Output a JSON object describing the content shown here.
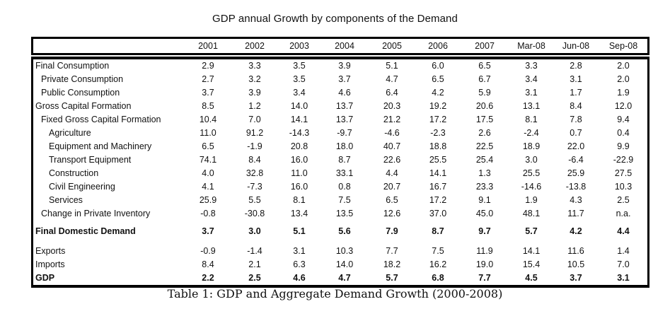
{
  "title": "GDP annual Growth by components of the Demand",
  "caption": "Table 1: GDP and Aggregate Demand Growth (2000-2008)",
  "columns": [
    "2001",
    "2002",
    "2003",
    "2004",
    "2005",
    "2006",
    "2007",
    "Mar-08",
    "Jun-08",
    "Sep-08"
  ],
  "rows": [
    {
      "label": "Final Consumption",
      "indent": 0,
      "bold": false,
      "values": [
        "2.9",
        "3.3",
        "3.5",
        "3.9",
        "5.1",
        "6.0",
        "6.5",
        "3.3",
        "2.8",
        "2.0"
      ]
    },
    {
      "label": "Private Consumption",
      "indent": 1,
      "bold": false,
      "values": [
        "2.7",
        "3.2",
        "3.5",
        "3.7",
        "4.7",
        "6.5",
        "6.7",
        "3.4",
        "3.1",
        "2.0"
      ]
    },
    {
      "label": "Public Consumption",
      "indent": 1,
      "bold": false,
      "values": [
        "3.7",
        "3.9",
        "3.4",
        "4.6",
        "6.4",
        "4.2",
        "5.9",
        "3.1",
        "1.7",
        "1.9"
      ]
    },
    {
      "label": "Gross Capital Formation",
      "indent": 0,
      "bold": false,
      "values": [
        "8.5",
        "1.2",
        "14.0",
        "13.7",
        "20.3",
        "19.2",
        "20.6",
        "13.1",
        "8.4",
        "12.0"
      ]
    },
    {
      "label": "Fixed Gross Capital Formation",
      "indent": 1,
      "bold": false,
      "values": [
        "10.4",
        "7.0",
        "14.1",
        "13.7",
        "21.2",
        "17.2",
        "17.5",
        "8.1",
        "7.8",
        "9.4"
      ]
    },
    {
      "label": "Agriculture",
      "indent": 2,
      "bold": false,
      "values": [
        "11.0",
        "91.2",
        "-14.3",
        "-9.7",
        "-4.6",
        "-2.3",
        "2.6",
        "-2.4",
        "0.7",
        "0.4"
      ]
    },
    {
      "label": "Equipment and Machinery",
      "indent": 2,
      "bold": false,
      "values": [
        "6.5",
        "-1.9",
        "20.8",
        "18.0",
        "40.7",
        "18.8",
        "22.5",
        "18.9",
        "22.0",
        "9.9"
      ]
    },
    {
      "label": "Transport Equipment",
      "indent": 2,
      "bold": false,
      "values": [
        "74.1",
        "8.4",
        "16.0",
        "8.7",
        "22.6",
        "25.5",
        "25.4",
        "3.0",
        "-6.4",
        "-22.9"
      ]
    },
    {
      "label": "Construction",
      "indent": 2,
      "bold": false,
      "values": [
        "4.0",
        "32.8",
        "11.0",
        "33.1",
        "4.4",
        "14.1",
        "1.3",
        "25.5",
        "25.9",
        "27.5"
      ]
    },
    {
      "label": "Civil Engineering",
      "indent": 2,
      "bold": false,
      "values": [
        "4.1",
        "-7.3",
        "16.0",
        "0.8",
        "20.7",
        "16.7",
        "23.3",
        "-14.6",
        "-13.8",
        "10.3"
      ]
    },
    {
      "label": "Services",
      "indent": 2,
      "bold": false,
      "values": [
        "25.9",
        "5.5",
        "8.1",
        "7.5",
        "6.5",
        "17.2",
        "9.1",
        "1.9",
        "4.3",
        "2.5"
      ]
    },
    {
      "label": "Change in Private Inventory",
      "indent": 1,
      "bold": false,
      "values": [
        "-0.8",
        "-30.8",
        "13.4",
        "13.5",
        "12.6",
        "37.0",
        "45.0",
        "48.1",
        "11.7",
        "n.a."
      ]
    },
    {
      "label": "Final Domestic Demand",
      "indent": 0,
      "bold": true,
      "values": [
        "3.7",
        "3.0",
        "5.1",
        "5.6",
        "7.9",
        "8.7",
        "9.7",
        "5.7",
        "4.2",
        "4.4"
      ]
    },
    {
      "label": "Exports",
      "indent": 0,
      "bold": false,
      "values": [
        "-0.9",
        "-1.4",
        "3.1",
        "10.3",
        "7.7",
        "7.5",
        "11.9",
        "14.1",
        "11.6",
        "1.4"
      ]
    },
    {
      "label": "Imports",
      "indent": 0,
      "bold": false,
      "values": [
        "8.4",
        "2.1",
        "6.3",
        "14.0",
        "18.2",
        "16.2",
        "19.0",
        "15.4",
        "10.5",
        "7.0"
      ]
    },
    {
      "label": "GDP",
      "indent": 0,
      "bold": true,
      "values": [
        "2.2",
        "2.5",
        "4.6",
        "4.7",
        "5.7",
        "6.8",
        "7.7",
        "4.5",
        "3.7",
        "3.1"
      ]
    }
  ]
}
